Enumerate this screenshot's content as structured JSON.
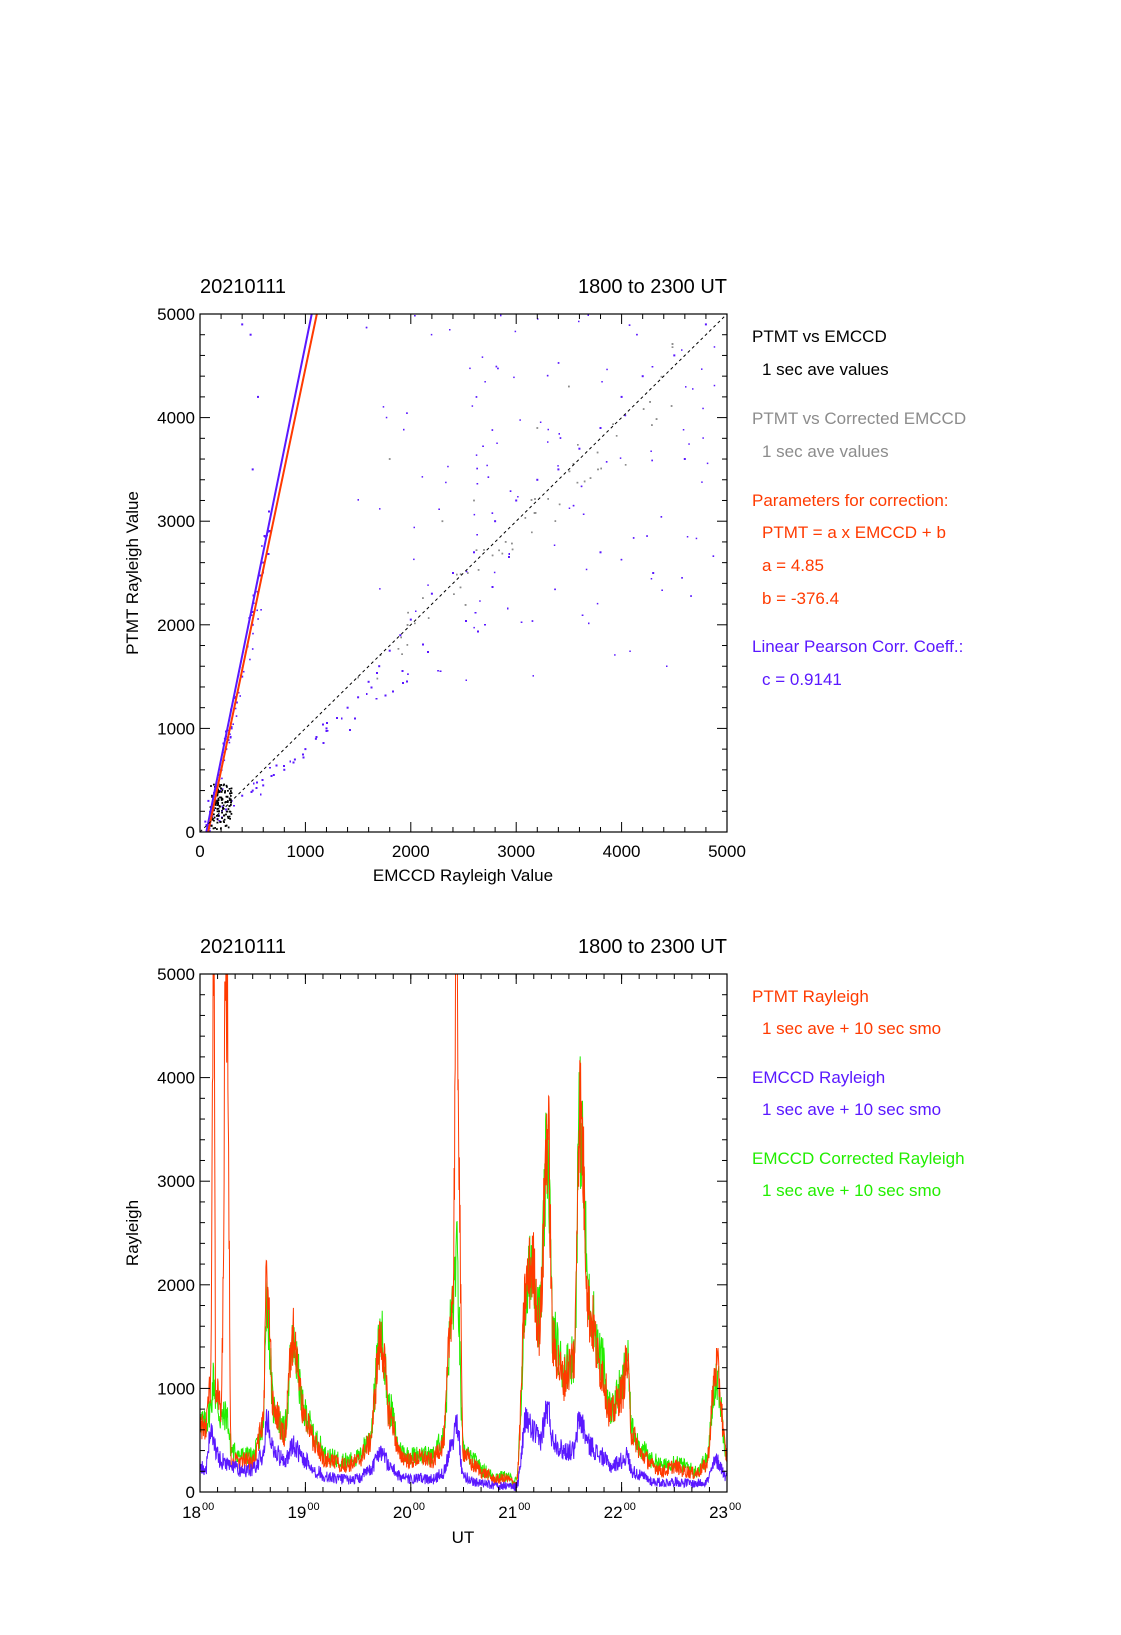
{
  "colors": {
    "axis": "#000000",
    "grey": "#8c8c8c",
    "red": "#ff3a00",
    "blue": "#5a18ff",
    "green": "#22ee00"
  },
  "top_panel": {
    "date": "20210111",
    "time_range": "1800 to 2300 UT",
    "legend": {
      "l1": "PTMT vs EMCCD",
      "l2": "1 sec ave values",
      "l3": "PTMT vs Corrected EMCCD",
      "l4": "1 sec ave values",
      "l5": "Parameters for correction:",
      "l6": "PTMT = a x EMCCD + b",
      "l7": "a = 4.85",
      "l8": "b = -376.4",
      "l9": "Linear Pearson Corr. Coeff.:",
      "l10": "c = 0.9141"
    }
  },
  "bottom_panel": {
    "date": "20210111",
    "time_range": "1800 to 2300 UT",
    "legend": {
      "l1": "PTMT Rayleigh",
      "l2": "1 sec ave + 10 sec smo",
      "l3": "EMCCD Rayleigh",
      "l4": "1 sec ave + 10 sec smo",
      "l5": "EMCCD Corrected Rayleigh",
      "l6": "1 sec ave + 10 sec smo"
    }
  },
  "chart_data": [
    {
      "type": "scatter",
      "xlabel": "EMCCD Rayleigh Value",
      "ylabel": "PTMT Rayleigh Value",
      "xlim": [
        0,
        5000
      ],
      "ylim": [
        0,
        5000
      ],
      "xticks": [
        "0",
        "1000",
        "2000",
        "3000",
        "4000",
        "5000"
      ],
      "yticks": [
        "0",
        "1000",
        "2000",
        "3000",
        "4000",
        "5000"
      ],
      "grid": false,
      "series": [
        {
          "name": "PTMT vs EMCCD",
          "color": "#000000",
          "points": [
            [
              120,
              120
            ],
            [
              150,
              300
            ],
            [
              180,
              200
            ],
            [
              200,
              420
            ],
            [
              230,
              160
            ],
            [
              260,
              340
            ],
            [
              280,
              250
            ],
            [
              110,
              60
            ]
          ]
        },
        {
          "name": "PTMT vs Corrected EMCCD",
          "color": "#8c8c8c",
          "points": [
            [
              1800,
              3600
            ],
            [
              2300,
              3000
            ],
            [
              2600,
              3200
            ],
            [
              3200,
              3900
            ],
            [
              2900,
              2800
            ],
            [
              3500,
              4300
            ]
          ]
        },
        {
          "name": "points",
          "color": "#5a18ff",
          "points": [
            [
              50,
              100
            ],
            [
              80,
              300
            ],
            [
              100,
              200
            ],
            [
              150,
              400
            ],
            [
              200,
              600
            ],
            [
              250,
              800
            ],
            [
              300,
              1000
            ],
            [
              350,
              1250
            ],
            [
              400,
              1500
            ],
            [
              450,
              1800
            ],
            [
              500,
              2000
            ],
            [
              550,
              2300
            ],
            [
              600,
              2600
            ],
            [
              650,
              2900
            ],
            [
              500,
              3500
            ],
            [
              550,
              4200
            ],
            [
              480,
              4800
            ],
            [
              400,
              4900
            ],
            [
              300,
              300
            ],
            [
              400,
              350
            ],
            [
              500,
              400
            ],
            [
              600,
              450
            ],
            [
              700,
              550
            ],
            [
              800,
              600
            ],
            [
              900,
              700
            ],
            [
              1000,
              800
            ],
            [
              1100,
              900
            ],
            [
              1200,
              1000
            ],
            [
              1300,
              1100
            ],
            [
              1400,
              1200
            ],
            [
              1500,
              1300
            ],
            [
              1600,
              1450
            ],
            [
              1700,
              1600
            ],
            [
              1800,
              1750
            ],
            [
              1900,
              1900
            ],
            [
              2000,
              2050
            ],
            [
              2200,
              2300
            ],
            [
              2400,
              2500
            ],
            [
              2600,
              2700
            ],
            [
              2800,
              3000
            ],
            [
              3000,
              3200
            ],
            [
              3200,
              3400
            ],
            [
              3400,
              3500
            ],
            [
              3600,
              3700
            ],
            [
              3800,
              3900
            ],
            [
              4000,
              4200
            ],
            [
              4200,
              4400
            ],
            [
              4500,
              4600
            ],
            [
              4800,
              4900
            ],
            [
              4300,
              2500
            ],
            [
              3800,
              2700
            ],
            [
              4600,
              3600
            ]
          ],
          "random_cloud": true
        },
        {
          "name": "fit PTMT vs EMCCD",
          "color": "#5a18ff",
          "type": "line",
          "points": [
            [
              60,
              0
            ],
            [
              1060,
              5000
            ]
          ]
        },
        {
          "name": "fit PTMT = a x EMCCD + b",
          "color": "#ff3a00",
          "type": "line",
          "points": [
            [
              77.6,
              0
            ],
            [
              1108.5,
              5000
            ]
          ]
        },
        {
          "name": "one-to-one",
          "color": "#000000",
          "type": "dashed-line",
          "points": [
            [
              0,
              0
            ],
            [
              5000,
              5000
            ]
          ]
        }
      ]
    },
    {
      "type": "line",
      "xlabel": "UT",
      "ylabel": "Rayleigh",
      "xlim": [
        18,
        23
      ],
      "ylim": [
        0,
        5000
      ],
      "xticks": [
        {
          "hour": "18",
          "min": "00"
        },
        {
          "hour": "19",
          "min": "00"
        },
        {
          "hour": "20",
          "min": "00"
        },
        {
          "hour": "21",
          "min": "00"
        },
        {
          "hour": "22",
          "min": "00"
        },
        {
          "hour": "23",
          "min": "00"
        }
      ],
      "yticks": [
        "0",
        "1000",
        "2000",
        "3000",
        "4000",
        "5000"
      ],
      "grid": false,
      "series": [
        {
          "name": "EMCCD Corrected Rayleigh",
          "color": "#22ee00",
          "x": [
            18.0,
            18.05,
            18.1,
            18.13,
            18.15,
            18.2,
            18.25,
            18.3,
            18.4,
            18.5,
            18.6,
            18.63,
            18.7,
            18.8,
            18.88,
            19.0,
            19.1,
            19.2,
            19.3,
            19.4,
            19.5,
            19.6,
            19.72,
            19.8,
            19.9,
            20.0,
            20.1,
            20.2,
            20.3,
            20.4,
            20.43,
            20.5,
            20.6,
            20.7,
            20.8,
            20.9,
            21.0,
            21.1,
            21.15,
            21.22,
            21.3,
            21.35,
            21.45,
            21.55,
            21.6,
            21.7,
            21.8,
            21.9,
            22.0,
            22.05,
            22.1,
            22.2,
            22.3,
            22.4,
            22.5,
            22.6,
            22.7,
            22.8,
            22.9,
            23.0
          ],
          "y": [
            700,
            650,
            800,
            1100,
            900,
            700,
            750,
            400,
            350,
            350,
            600,
            1900,
            800,
            600,
            1400,
            750,
            500,
            350,
            320,
            300,
            330,
            500,
            1500,
            800,
            400,
            350,
            360,
            350,
            500,
            1800,
            2300,
            400,
            300,
            200,
            150,
            150,
            100,
            1900,
            2300,
            1700,
            3300,
            1500,
            1200,
            1300,
            3600,
            1800,
            1300,
            800,
            1000,
            1300,
            600,
            400,
            300,
            250,
            300,
            250,
            200,
            300,
            1100,
            400
          ]
        },
        {
          "name": "EMCCD Rayleigh",
          "color": "#5a18ff",
          "x": [
            18.0,
            18.05,
            18.1,
            18.13,
            18.15,
            18.2,
            18.25,
            18.3,
            18.4,
            18.5,
            18.6,
            18.63,
            18.7,
            18.8,
            18.88,
            19.0,
            19.1,
            19.2,
            19.3,
            19.4,
            19.5,
            19.6,
            19.72,
            19.8,
            19.9,
            20.0,
            20.1,
            20.2,
            20.3,
            20.4,
            20.43,
            20.5,
            20.6,
            20.7,
            20.8,
            20.9,
            21.0,
            21.1,
            21.15,
            21.22,
            21.3,
            21.35,
            21.45,
            21.55,
            21.6,
            21.7,
            21.8,
            21.9,
            22.0,
            22.05,
            22.1,
            22.2,
            22.3,
            22.4,
            22.5,
            22.6,
            22.7,
            22.8,
            22.9,
            23.0
          ],
          "y": [
            250,
            200,
            600,
            500,
            400,
            300,
            280,
            250,
            200,
            220,
            350,
            700,
            400,
            300,
            450,
            300,
            200,
            150,
            130,
            120,
            130,
            200,
            400,
            250,
            150,
            120,
            130,
            120,
            180,
            500,
            700,
            150,
            100,
            80,
            60,
            60,
            50,
            700,
            600,
            500,
            800,
            500,
            400,
            400,
            700,
            450,
            350,
            250,
            300,
            350,
            200,
            150,
            100,
            90,
            100,
            90,
            80,
            100,
            300,
            150
          ]
        },
        {
          "name": "PTMT Rayleigh",
          "color": "#ff3a00",
          "x": [
            18.0,
            18.05,
            18.1,
            18.13,
            18.15,
            18.2,
            18.25,
            18.3,
            18.4,
            18.5,
            18.6,
            18.63,
            18.7,
            18.8,
            18.88,
            19.0,
            19.1,
            19.2,
            19.3,
            19.4,
            19.5,
            19.6,
            19.72,
            19.8,
            19.9,
            20.0,
            20.1,
            20.2,
            20.3,
            20.4,
            20.43,
            20.5,
            20.6,
            20.7,
            20.8,
            20.9,
            21.0,
            21.1,
            21.15,
            21.22,
            21.3,
            21.35,
            21.45,
            21.55,
            21.6,
            21.7,
            21.8,
            21.9,
            22.0,
            22.05,
            22.1,
            22.2,
            22.3,
            22.4,
            22.5,
            22.6,
            22.7,
            22.8,
            22.9,
            23.0
          ],
          "y": [
            650,
            600,
            1000,
            5000,
            1000,
            800,
            5000,
            300,
            300,
            300,
            650,
            2000,
            800,
            550,
            1500,
            700,
            450,
            300,
            280,
            260,
            300,
            450,
            1450,
            750,
            350,
            300,
            330,
            300,
            450,
            1900,
            5000,
            380,
            250,
            180,
            120,
            130,
            80,
            2000,
            2200,
            1600,
            3500,
            1400,
            1100,
            1300,
            3700,
            1700,
            1200,
            750,
            950,
            1250,
            550,
            350,
            250,
            200,
            250,
            200,
            180,
            250,
            1200,
            350
          ]
        }
      ]
    }
  ]
}
